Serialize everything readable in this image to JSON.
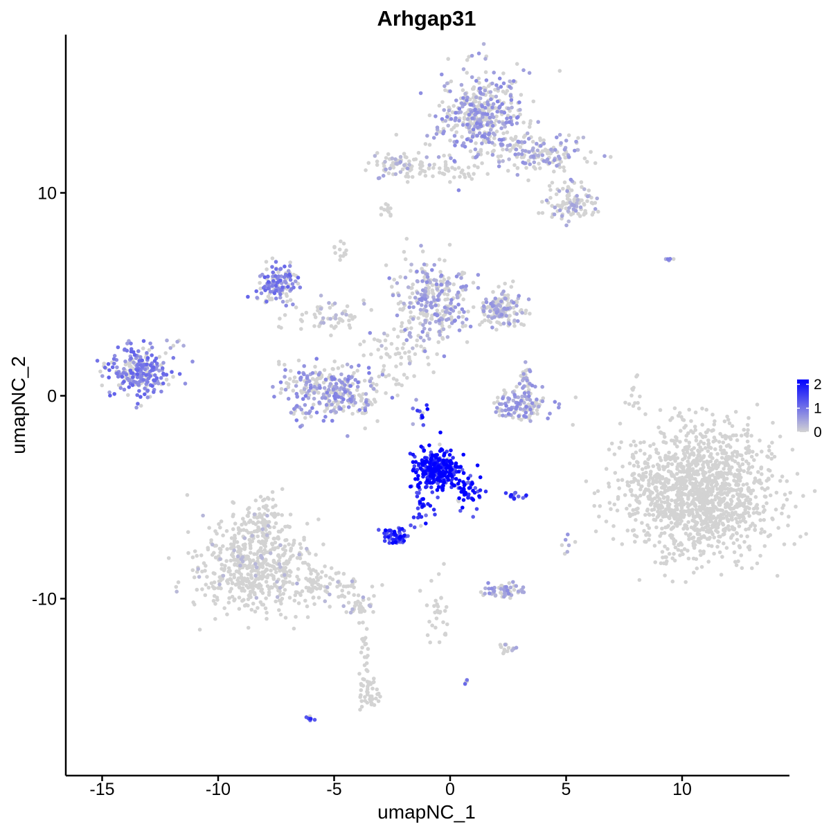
{
  "chart_data": {
    "type": "scatter",
    "title": "Arhgap31",
    "xlabel": "umapNC_1",
    "ylabel": "umapNC_2",
    "xlim": [
      -16.3,
      14.5
    ],
    "ylim": [
      -18.4,
      17.8
    ],
    "x_ticks": [
      -15,
      -10,
      -5,
      0,
      5,
      10
    ],
    "x_tick_labels": [
      "-15",
      "-10",
      "-5",
      "0",
      "5",
      "10"
    ],
    "y_ticks": [
      -10,
      0,
      10
    ],
    "y_tick_labels": [
      "-10",
      "0",
      "10"
    ],
    "grid": false,
    "color_scale": {
      "low": "#d3d3d3",
      "high": "#0000ff",
      "min": 0,
      "max": 2.2
    },
    "legend": {
      "position": "right",
      "ticks": [
        0,
        1,
        2
      ],
      "tick_labels": [
        "0",
        "1",
        "2"
      ]
    },
    "clusters": [
      {
        "cx": 1.3,
        "cy": 13.8,
        "sx": 0.9,
        "sy": 1.1,
        "n": 420,
        "expr": 0.55
      },
      {
        "cx": 3.6,
        "cy": 11.9,
        "sx": 1.2,
        "sy": 0.45,
        "n": 160,
        "expr": 0.45
      },
      {
        "cx": 5.2,
        "cy": 9.5,
        "sx": 0.55,
        "sy": 0.45,
        "n": 110,
        "expr": 0.35
      },
      {
        "cx": -2.2,
        "cy": 11.4,
        "sx": 0.55,
        "sy": 0.35,
        "n": 70,
        "expr": 0.35
      },
      {
        "cx": -0.6,
        "cy": 11.1,
        "sx": 0.9,
        "sy": 0.2,
        "n": 40,
        "expr": 0.15
      },
      {
        "cx": -7.4,
        "cy": 5.4,
        "sx": 0.45,
        "sy": 0.5,
        "n": 130,
        "expr": 0.8
      },
      {
        "cx": -5.2,
        "cy": 3.9,
        "sx": 0.9,
        "sy": 0.35,
        "n": 60,
        "expr": 0.25
      },
      {
        "cx": -0.8,
        "cy": 4.6,
        "sx": 0.8,
        "sy": 1.0,
        "n": 300,
        "expr": 0.5
      },
      {
        "cx": 2.2,
        "cy": 4.3,
        "sx": 0.5,
        "sy": 0.45,
        "n": 150,
        "expr": 0.45
      },
      {
        "cx": -13.4,
        "cy": 1.2,
        "sx": 0.6,
        "sy": 0.6,
        "n": 250,
        "expr": 0.8
      },
      {
        "cx": -5.1,
        "cy": 0.2,
        "sx": 1.1,
        "sy": 0.7,
        "n": 300,
        "expr": 0.6
      },
      {
        "cx": 3.1,
        "cy": -0.5,
        "sx": 0.7,
        "sy": 0.35,
        "n": 120,
        "expr": 0.55
      },
      {
        "cx": 3.2,
        "cy": 0.8,
        "sx": 0.15,
        "sy": 0.45,
        "n": 30,
        "expr": 0.5
      },
      {
        "cx": 10.7,
        "cy": -4.8,
        "sx": 1.6,
        "sy": 1.6,
        "n": 1400,
        "expr": 0.06
      },
      {
        "cx": -0.6,
        "cy": -3.6,
        "sx": 0.5,
        "sy": 0.5,
        "n": 280,
        "expr": 1.9
      },
      {
        "cx": 0.8,
        "cy": -4.6,
        "sx": 0.3,
        "sy": 0.45,
        "n": 50,
        "expr": 1.7
      },
      {
        "cx": -1.3,
        "cy": -5.5,
        "sx": 0.25,
        "sy": 0.6,
        "n": 30,
        "expr": 1.6
      },
      {
        "cx": -2.4,
        "cy": -6.9,
        "sx": 0.3,
        "sy": 0.2,
        "n": 60,
        "expr": 1.6
      },
      {
        "cx": 2.7,
        "cy": -4.9,
        "sx": 0.25,
        "sy": 0.1,
        "n": 15,
        "expr": 1.3
      },
      {
        "cx": -8.5,
        "cy": -8.4,
        "sx": 1.2,
        "sy": 1.1,
        "n": 500,
        "expr": 0.2
      },
      {
        "cx": -8.2,
        "cy": -6.3,
        "sx": 0.5,
        "sy": 0.7,
        "n": 100,
        "expr": 0.2
      },
      {
        "cx": -5.5,
        "cy": -9.5,
        "sx": 1.0,
        "sy": 0.35,
        "n": 80,
        "expr": 0.25
      },
      {
        "cx": -4.0,
        "cy": -10.3,
        "sx": 0.3,
        "sy": 0.25,
        "n": 30,
        "expr": 0.3
      },
      {
        "cx": -3.7,
        "cy": -12.4,
        "sx": 0.1,
        "sy": 1.0,
        "n": 25,
        "expr": 0.1
      },
      {
        "cx": -3.5,
        "cy": -14.8,
        "sx": 0.25,
        "sy": 0.4,
        "n": 40,
        "expr": 0.15
      },
      {
        "cx": 2.3,
        "cy": -9.6,
        "sx": 0.5,
        "sy": 0.2,
        "n": 60,
        "expr": 0.5
      },
      {
        "cx": 2.4,
        "cy": -12.5,
        "sx": 0.25,
        "sy": 0.12,
        "n": 15,
        "expr": 0.4
      },
      {
        "cx": -0.5,
        "cy": -10.7,
        "sx": 0.3,
        "sy": 1.0,
        "n": 30,
        "expr": 0.25
      },
      {
        "cx": -2.8,
        "cy": 9.1,
        "sx": 0.15,
        "sy": 0.15,
        "n": 12,
        "expr": 0.1
      },
      {
        "cx": -4.7,
        "cy": 7.3,
        "sx": 0.15,
        "sy": 0.25,
        "n": 12,
        "expr": 0.1
      },
      {
        "cx": 7.9,
        "cy": 0.0,
        "sx": 0.15,
        "sy": 0.4,
        "n": 12,
        "expr": 0.1
      },
      {
        "cx": -11.7,
        "cy": 2.6,
        "sx": 0.25,
        "sy": 0.2,
        "n": 6,
        "expr": 0.4
      },
      {
        "cx": -6.0,
        "cy": -16.0,
        "sx": 0.12,
        "sy": 0.1,
        "n": 6,
        "expr": 1.3
      },
      {
        "cx": 0.6,
        "cy": -14.1,
        "sx": 0.08,
        "sy": 0.08,
        "n": 4,
        "expr": 1.0
      },
      {
        "cx": 5.0,
        "cy": -7.4,
        "sx": 0.1,
        "sy": 0.3,
        "n": 6,
        "expr": 0.5
      },
      {
        "cx": -1.3,
        "cy": -0.9,
        "sx": 0.15,
        "sy": 0.25,
        "n": 10,
        "expr": 1.5
      },
      {
        "cx": -2.4,
        "cy": 1.8,
        "sx": 0.8,
        "sy": 0.8,
        "n": 60,
        "expr": 0.2
      },
      {
        "cx": 9.6,
        "cy": 6.7,
        "sx": 0.2,
        "sy": 0.05,
        "n": 5,
        "expr": 0.6
      }
    ]
  }
}
